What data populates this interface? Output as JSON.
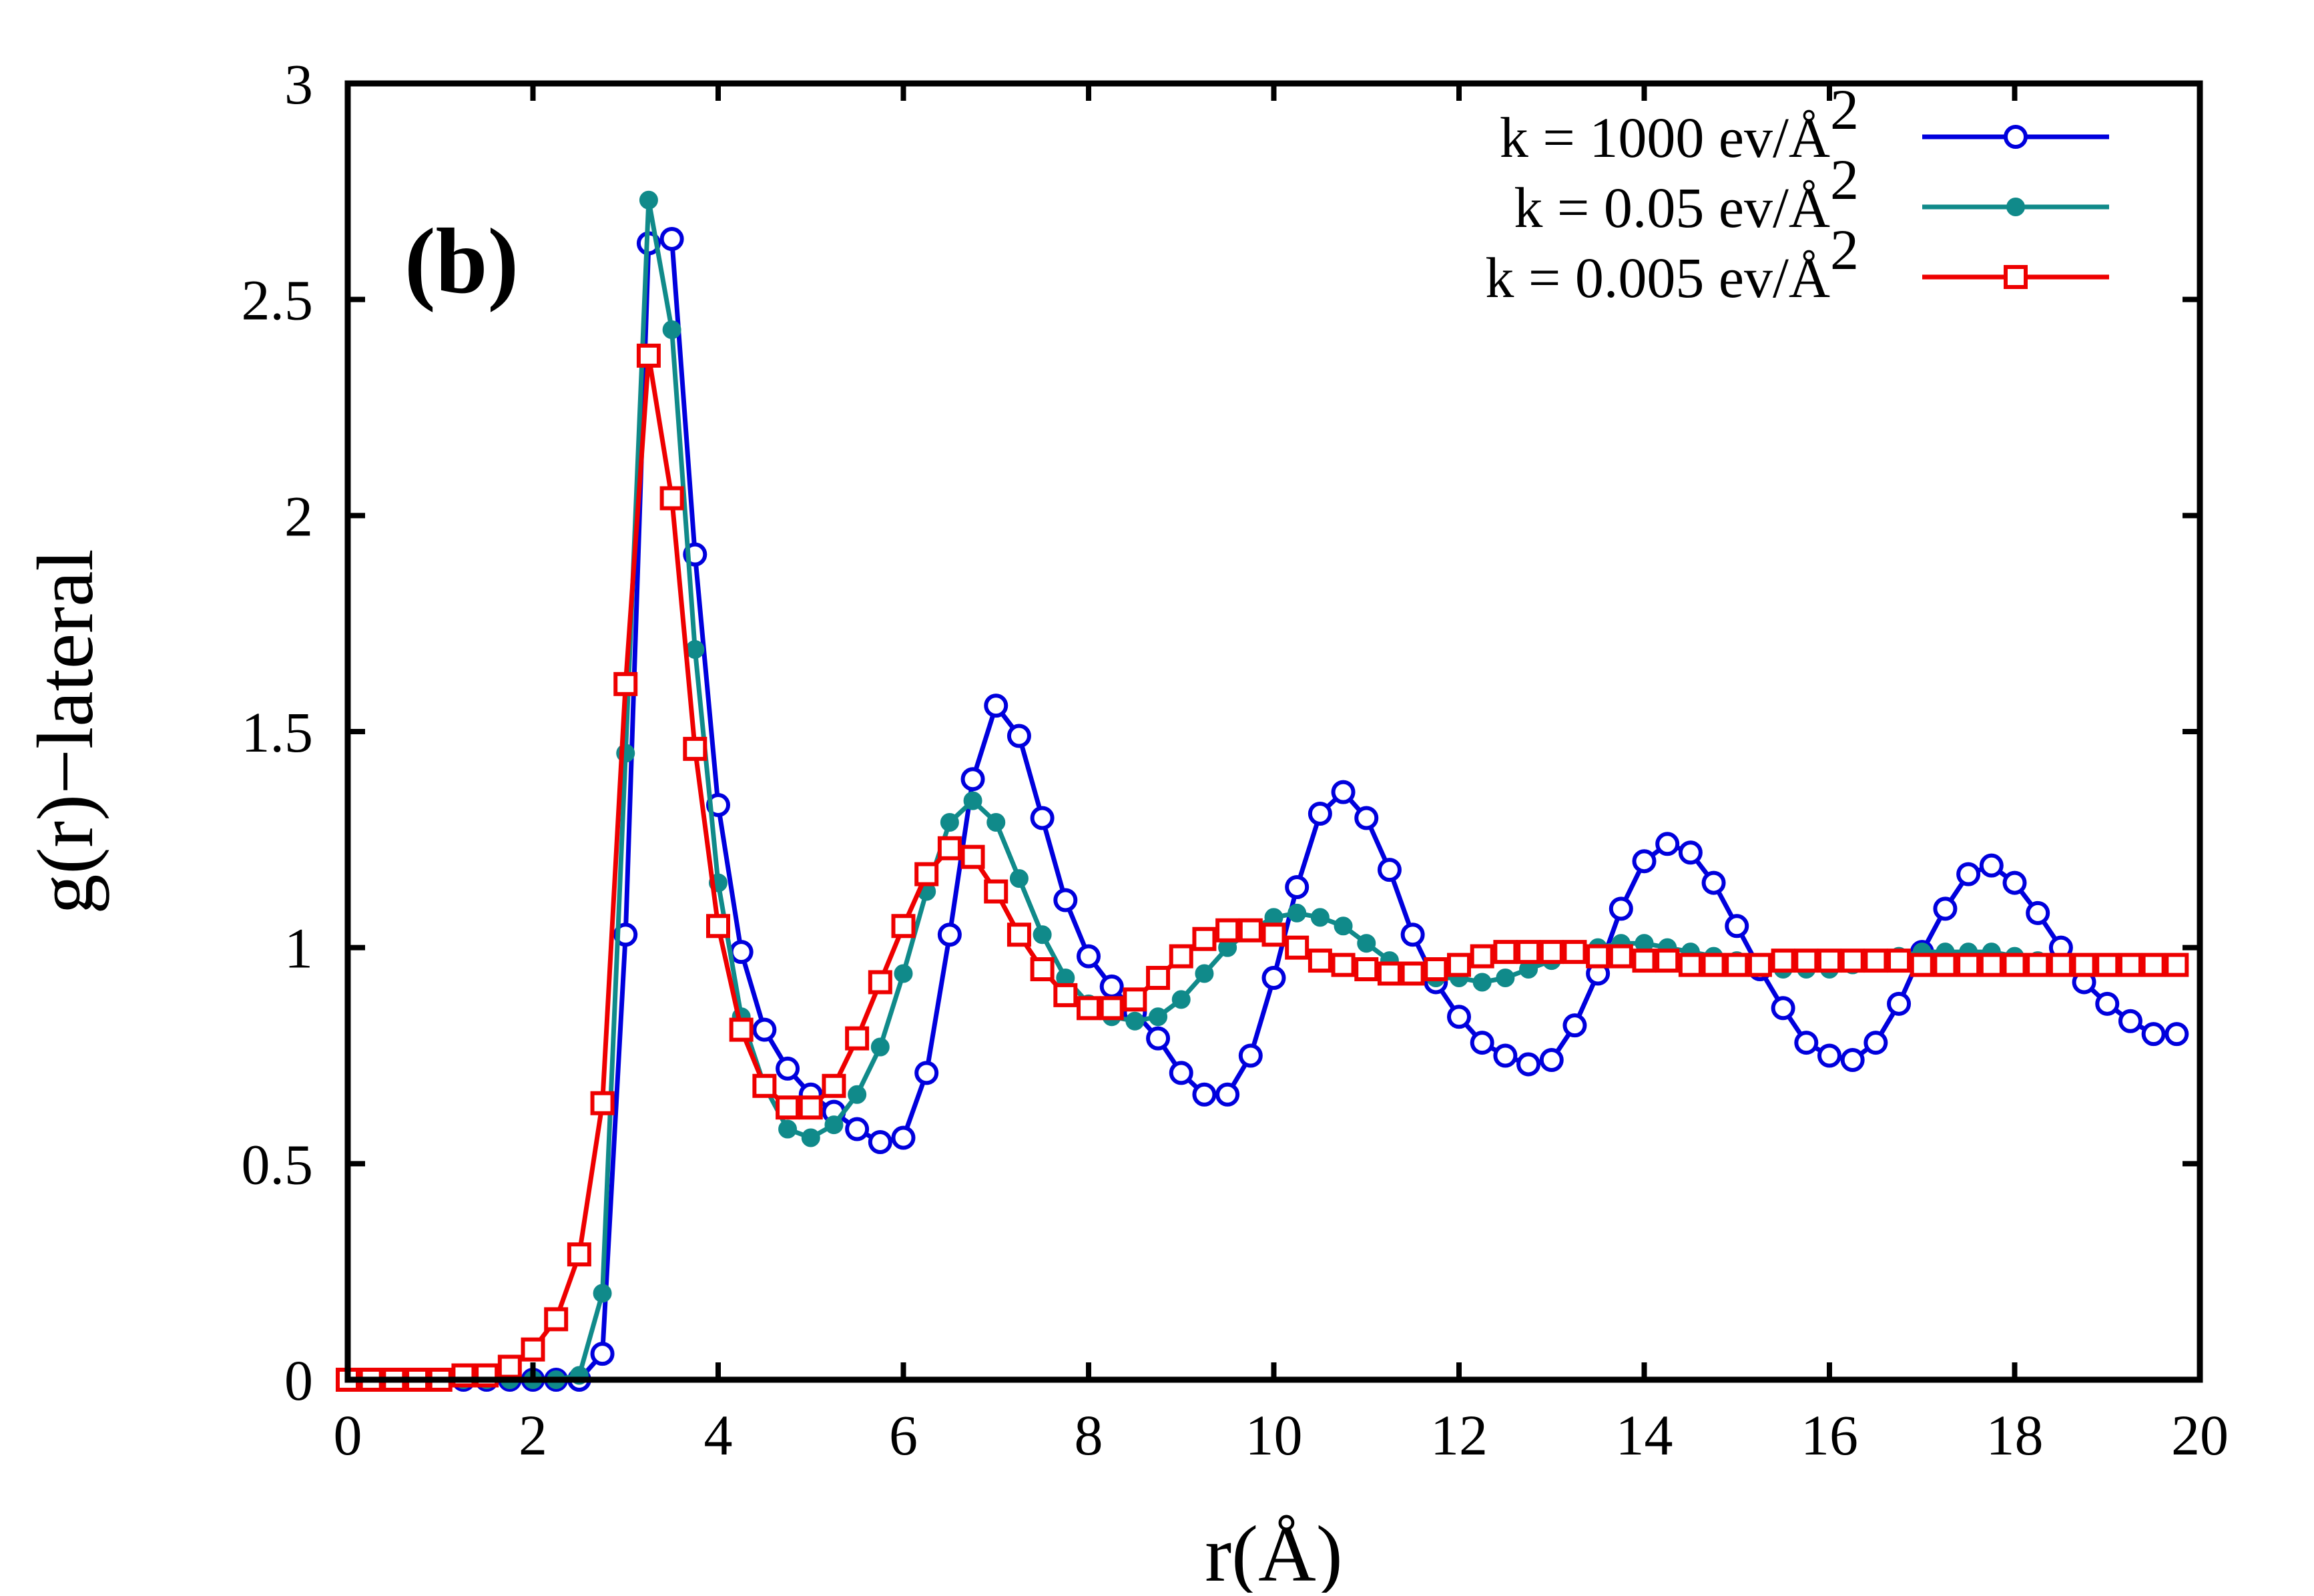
{
  "chart_data": {
    "type": "line",
    "panel_label": "(b)",
    "title": "",
    "xlabel": "r(Å)",
    "ylabel": "g(r)−lateral",
    "xlim": [
      0,
      20
    ],
    "ylim": [
      0,
      3
    ],
    "x_ticks": [
      "0",
      "2",
      "4",
      "6",
      "8",
      "10",
      "12",
      "14",
      "16",
      "18",
      "20"
    ],
    "y_ticks": [
      "0",
      "0.5",
      "1",
      "1.5",
      "2",
      "2.5",
      "3"
    ],
    "x_tick_values": [
      0,
      2,
      4,
      6,
      8,
      10,
      12,
      14,
      16,
      18,
      20
    ],
    "y_tick_values": [
      0,
      0.5,
      1,
      1.5,
      2,
      2.5,
      3
    ],
    "grid": false,
    "legend_position": "top-right",
    "series": [
      {
        "name": "k = 1000 ev/Å^2",
        "label_main": "k = 1000 ev/Å",
        "label_sup": "2",
        "color": "#0000dd",
        "marker": "open-circle",
        "x": [
          0.0,
          0.25,
          0.5,
          0.75,
          1.0,
          1.25,
          1.5,
          1.75,
          2.0,
          2.25,
          2.5,
          2.75,
          3.0,
          3.25,
          3.5,
          3.75,
          4.0,
          4.25,
          4.5,
          4.75,
          5.0,
          5.25,
          5.5,
          5.75,
          6.0,
          6.25,
          6.5,
          6.75,
          7.0,
          7.25,
          7.5,
          7.75,
          8.0,
          8.25,
          8.5,
          8.75,
          9.0,
          9.25,
          9.5,
          9.75,
          10.0,
          10.25,
          10.5,
          10.75,
          11.0,
          11.25,
          11.5,
          11.75,
          12.0,
          12.25,
          12.5,
          12.75,
          13.0,
          13.25,
          13.5,
          13.75,
          14.0,
          14.25,
          14.5,
          14.75,
          15.0,
          15.25,
          15.5,
          15.75,
          16.0,
          16.25,
          16.5,
          16.75,
          17.0,
          17.25,
          17.5,
          17.75,
          18.0,
          18.25,
          18.5,
          18.75,
          19.0,
          19.25,
          19.5,
          19.75
        ],
        "y": [
          0.0,
          0.0,
          0.0,
          0.0,
          0.0,
          0.0,
          0.0,
          0.0,
          0.0,
          0.0,
          0.0,
          0.06,
          1.03,
          2.63,
          2.64,
          1.91,
          1.33,
          0.99,
          0.81,
          0.72,
          0.66,
          0.62,
          0.58,
          0.55,
          0.56,
          0.71,
          1.03,
          1.39,
          1.56,
          1.49,
          1.3,
          1.11,
          0.98,
          0.91,
          0.85,
          0.79,
          0.71,
          0.66,
          0.66,
          0.75,
          0.93,
          1.14,
          1.31,
          1.36,
          1.3,
          1.18,
          1.03,
          0.92,
          0.84,
          0.78,
          0.75,
          0.73,
          0.74,
          0.82,
          0.94,
          1.09,
          1.2,
          1.24,
          1.22,
          1.15,
          1.05,
          0.95,
          0.86,
          0.78,
          0.75,
          0.74,
          0.78,
          0.87,
          0.99,
          1.09,
          1.17,
          1.19,
          1.15,
          1.08,
          1.0,
          0.92,
          0.87,
          0.83,
          0.8,
          0.8
        ]
      },
      {
        "name": "k = 0.05 ev/Å^2",
        "label_main": "k = 0.05 ev/Å",
        "label_sup": "2",
        "color": "#108a8a",
        "marker": "filled-circle",
        "x": [
          0.0,
          0.25,
          0.5,
          0.75,
          1.0,
          1.25,
          1.5,
          1.75,
          2.0,
          2.25,
          2.5,
          2.75,
          3.0,
          3.25,
          3.5,
          3.75,
          4.0,
          4.25,
          4.5,
          4.75,
          5.0,
          5.25,
          5.5,
          5.75,
          6.0,
          6.25,
          6.5,
          6.75,
          7.0,
          7.25,
          7.5,
          7.75,
          8.0,
          8.25,
          8.5,
          8.75,
          9.0,
          9.25,
          9.5,
          9.75,
          10.0,
          10.25,
          10.5,
          10.75,
          11.0,
          11.25,
          11.5,
          11.75,
          12.0,
          12.25,
          12.5,
          12.75,
          13.0,
          13.25,
          13.5,
          13.75,
          14.0,
          14.25,
          14.5,
          14.75,
          15.0,
          15.25,
          15.5,
          15.75,
          16.0,
          16.25,
          16.5,
          16.75,
          17.0,
          17.25,
          17.5,
          17.75,
          18.0,
          18.25,
          18.5,
          18.75,
          19.0,
          19.25,
          19.5,
          19.75
        ],
        "y": [
          0.0,
          0.0,
          0.0,
          0.0,
          0.0,
          0.0,
          0.0,
          0.0,
          0.0,
          0.0,
          0.01,
          0.2,
          1.45,
          2.73,
          2.43,
          1.69,
          1.15,
          0.84,
          0.68,
          0.58,
          0.56,
          0.59,
          0.66,
          0.77,
          0.94,
          1.13,
          1.29,
          1.34,
          1.29,
          1.16,
          1.03,
          0.93,
          0.87,
          0.84,
          0.83,
          0.84,
          0.88,
          0.94,
          1.0,
          1.04,
          1.07,
          1.08,
          1.07,
          1.05,
          1.01,
          0.97,
          0.94,
          0.93,
          0.93,
          0.92,
          0.93,
          0.95,
          0.97,
          0.99,
          1.0,
          1.01,
          1.01,
          1.0,
          0.99,
          0.98,
          0.97,
          0.96,
          0.95,
          0.95,
          0.95,
          0.96,
          0.97,
          0.98,
          0.99,
          0.99,
          0.99,
          0.99,
          0.98,
          0.97,
          0.96,
          0.96,
          0.96,
          0.96,
          0.96,
          0.96
        ]
      },
      {
        "name": "k = 0.005 ev/Å^2",
        "label_main": "k = 0.005 ev/Å",
        "label_sup": "2",
        "color": "#ee0000",
        "marker": "open-square",
        "x": [
          0.0,
          0.25,
          0.5,
          0.75,
          1.0,
          1.25,
          1.5,
          1.75,
          2.0,
          2.25,
          2.5,
          2.75,
          3.0,
          3.25,
          3.5,
          3.75,
          4.0,
          4.25,
          4.5,
          4.75,
          5.0,
          5.25,
          5.5,
          5.75,
          6.0,
          6.25,
          6.5,
          6.75,
          7.0,
          7.25,
          7.5,
          7.75,
          8.0,
          8.25,
          8.5,
          8.75,
          9.0,
          9.25,
          9.5,
          9.75,
          10.0,
          10.25,
          10.5,
          10.75,
          11.0,
          11.25,
          11.5,
          11.75,
          12.0,
          12.25,
          12.5,
          12.75,
          13.0,
          13.25,
          13.5,
          13.75,
          14.0,
          14.25,
          14.5,
          14.75,
          15.0,
          15.25,
          15.5,
          15.75,
          16.0,
          16.25,
          16.5,
          16.75,
          17.0,
          17.25,
          17.5,
          17.75,
          18.0,
          18.25,
          18.5,
          18.75,
          19.0,
          19.25,
          19.5,
          19.75
        ],
        "y": [
          0.0,
          0.0,
          0.0,
          0.0,
          0.0,
          0.01,
          0.01,
          0.03,
          0.07,
          0.14,
          0.29,
          0.64,
          1.61,
          2.37,
          2.04,
          1.46,
          1.05,
          0.81,
          0.68,
          0.63,
          0.63,
          0.68,
          0.79,
          0.92,
          1.05,
          1.17,
          1.23,
          1.21,
          1.13,
          1.03,
          0.95,
          0.89,
          0.86,
          0.86,
          0.88,
          0.93,
          0.98,
          1.02,
          1.04,
          1.04,
          1.03,
          1.0,
          0.97,
          0.96,
          0.95,
          0.94,
          0.94,
          0.95,
          0.96,
          0.98,
          0.99,
          0.99,
          0.99,
          0.99,
          0.98,
          0.98,
          0.97,
          0.97,
          0.96,
          0.96,
          0.96,
          0.96,
          0.97,
          0.97,
          0.97,
          0.97,
          0.97,
          0.97,
          0.96,
          0.96,
          0.96,
          0.96,
          0.96,
          0.96,
          0.96,
          0.96,
          0.96,
          0.96,
          0.96,
          0.96
        ]
      }
    ]
  }
}
